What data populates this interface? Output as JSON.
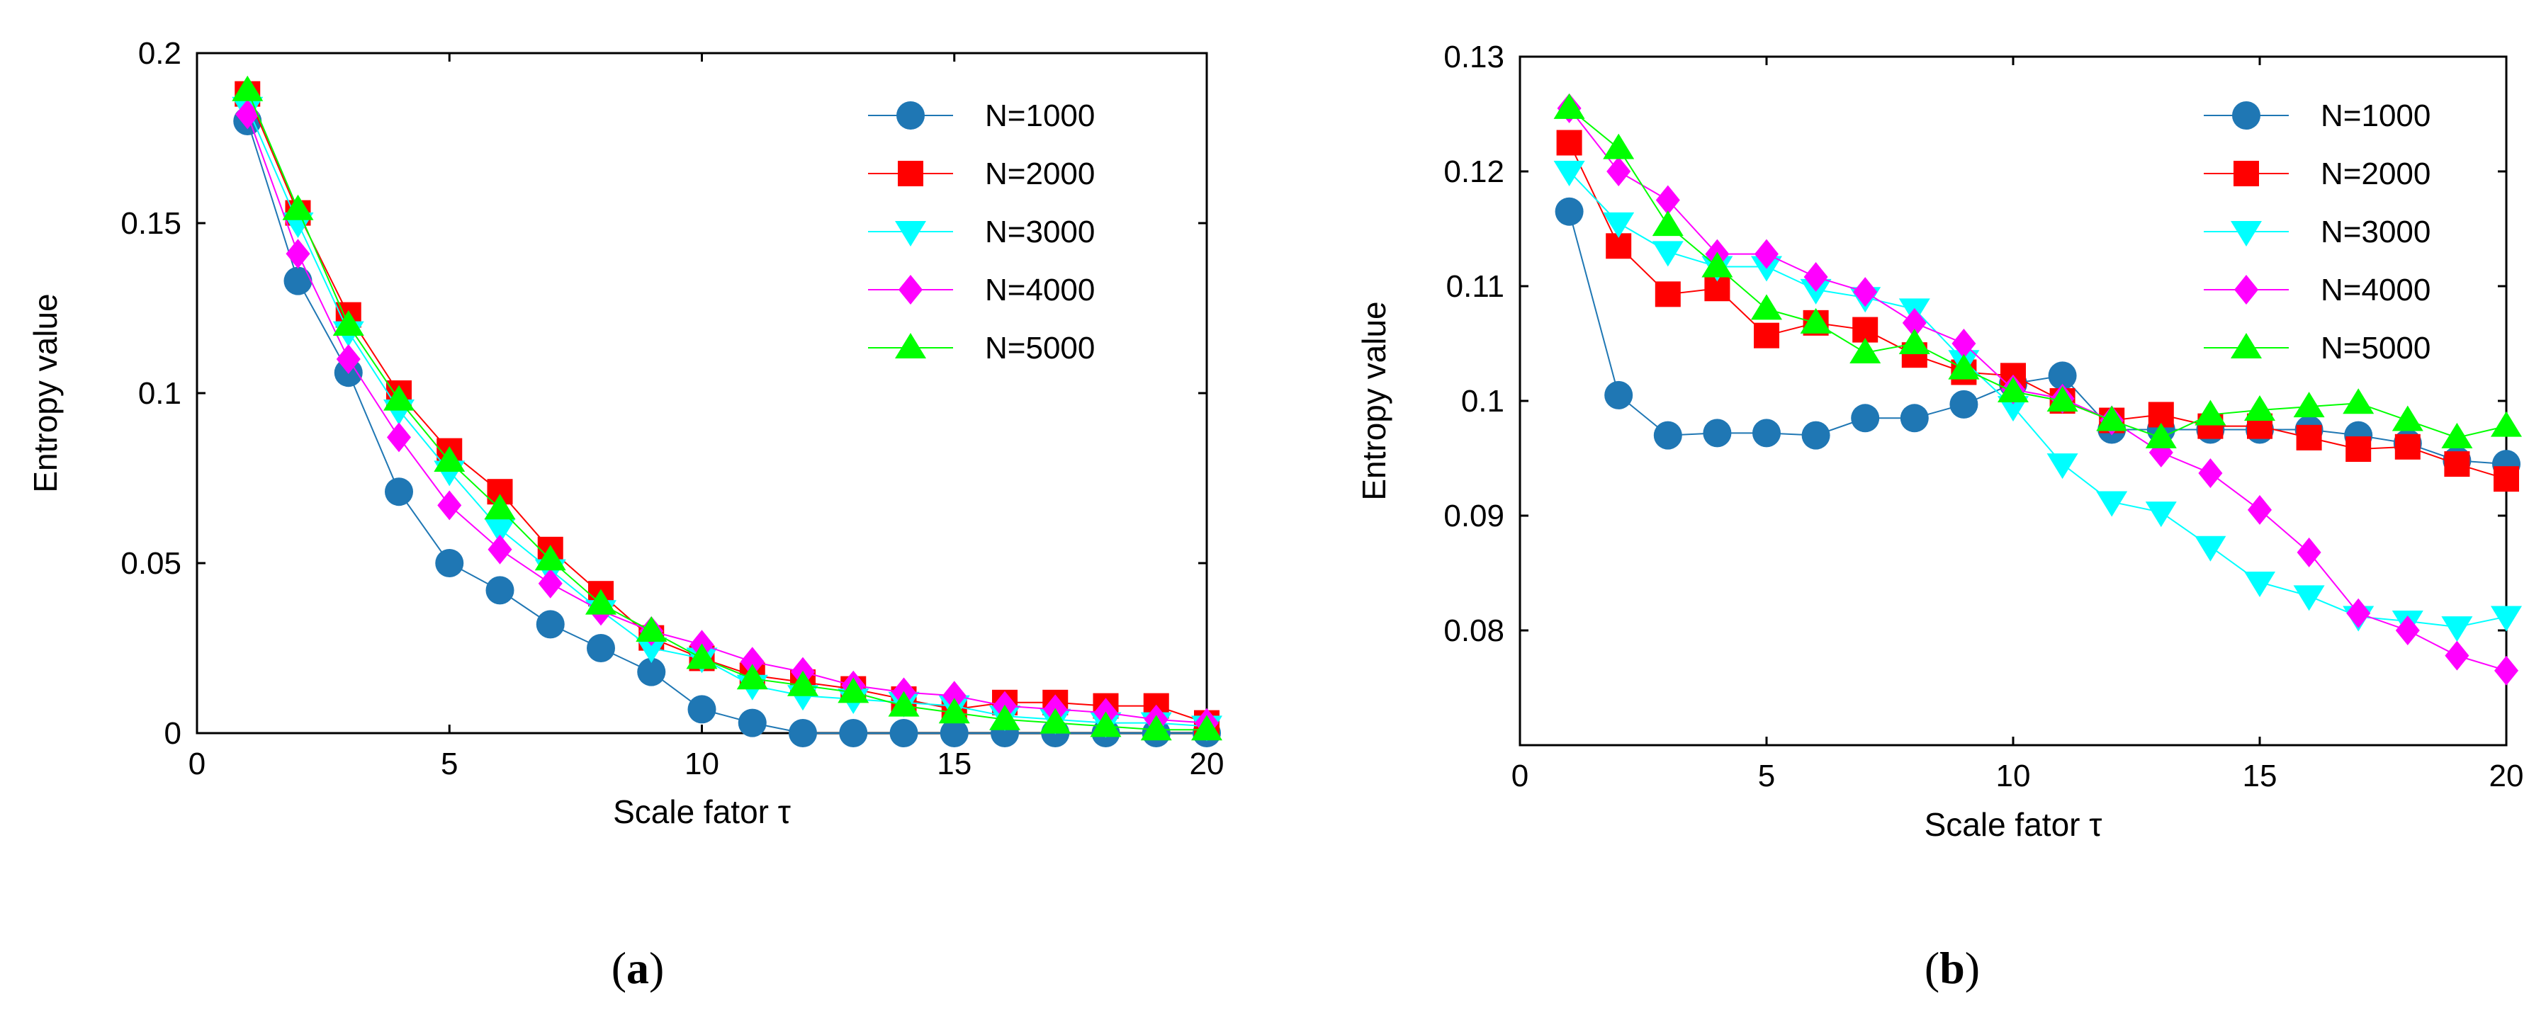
{
  "chart_data": [
    {
      "type": "line",
      "panel_label": "a",
      "xlabel": "Scale fator τ",
      "ylabel": "Entropy value",
      "xlim": [
        0,
        20
      ],
      "ylim": [
        0,
        0.2
      ],
      "xticks": [
        0,
        5,
        10,
        15,
        20
      ],
      "xtick_labels": [
        "0",
        "5",
        "10",
        "15",
        "20"
      ],
      "yticks": [
        0,
        0.05,
        0.1,
        0.15,
        0.2
      ],
      "ytick_labels": [
        "0",
        "0.05",
        "0.1",
        "0.15",
        "0.2"
      ],
      "grid": false,
      "legend_position": "top-right",
      "x": [
        1,
        2,
        3,
        4,
        5,
        6,
        7,
        8,
        9,
        10,
        11,
        12,
        13,
        14,
        15,
        16,
        17,
        18,
        19,
        20
      ],
      "series": [
        {
          "name": "N=1000",
          "color": "#1f77b4",
          "marker": "circle",
          "values": [
            0.18,
            0.133,
            0.106,
            0.071,
            0.05,
            0.042,
            0.032,
            0.025,
            0.018,
            0.007,
            0.003,
            0.0,
            0.0,
            0.0,
            0.0,
            0.0,
            0.0,
            0.0,
            0.0,
            0.0
          ]
        },
        {
          "name": "N=2000",
          "color": "#ff0000",
          "marker": "square",
          "values": [
            0.188,
            0.153,
            0.123,
            0.1,
            0.083,
            0.071,
            0.054,
            0.041,
            0.028,
            0.022,
            0.017,
            0.015,
            0.013,
            0.01,
            0.007,
            0.009,
            0.009,
            0.008,
            0.008,
            0.003
          ]
        },
        {
          "name": "N=3000",
          "color": "#00ffff",
          "marker": "triangle-down",
          "values": [
            0.184,
            0.15,
            0.118,
            0.095,
            0.077,
            0.06,
            0.048,
            0.036,
            0.025,
            0.022,
            0.014,
            0.011,
            0.01,
            0.009,
            0.008,
            0.005,
            0.004,
            0.003,
            0.003,
            0.002
          ]
        },
        {
          "name": "N=4000",
          "color": "#ff00ff",
          "marker": "diamond",
          "values": [
            0.182,
            0.141,
            0.11,
            0.087,
            0.067,
            0.054,
            0.044,
            0.036,
            0.03,
            0.026,
            0.021,
            0.018,
            0.014,
            0.012,
            0.011,
            0.008,
            0.007,
            0.006,
            0.004,
            0.003
          ]
        },
        {
          "name": "N=5000",
          "color": "#00ff00",
          "marker": "triangle-up",
          "values": [
            0.189,
            0.154,
            0.12,
            0.098,
            0.08,
            0.066,
            0.051,
            0.038,
            0.03,
            0.022,
            0.016,
            0.014,
            0.012,
            0.008,
            0.006,
            0.004,
            0.003,
            0.002,
            0.001,
            0.001
          ]
        }
      ]
    },
    {
      "type": "line",
      "panel_label": "b",
      "xlabel": "Scale fator τ",
      "ylabel": "Entropy value",
      "xlim": [
        0,
        20
      ],
      "ylim": [
        0.07,
        0.13
      ],
      "xticks": [
        0,
        5,
        10,
        15,
        20
      ],
      "xtick_labels": [
        "0",
        "5",
        "10",
        "15",
        "20"
      ],
      "yticks": [
        0.08,
        0.09,
        0.1,
        0.11,
        0.12,
        0.13
      ],
      "ytick_labels": [
        "0.08",
        "0.09",
        "0.1",
        "0.11",
        "0.12",
        "0.13"
      ],
      "grid": false,
      "legend_position": "top-right",
      "x": [
        1,
        2,
        3,
        4,
        5,
        6,
        7,
        8,
        9,
        10,
        11,
        12,
        13,
        14,
        15,
        16,
        17,
        18,
        19,
        20
      ],
      "series": [
        {
          "name": "N=1000",
          "color": "#1f77b4",
          "marker": "circle",
          "values": [
            0.1165,
            0.1005,
            0.097,
            0.0972,
            0.0972,
            0.097,
            0.0985,
            0.0985,
            0.0997,
            0.1015,
            0.1022,
            0.0975,
            0.0975,
            0.0975,
            0.0975,
            0.0975,
            0.097,
            0.0963,
            0.0948,
            0.0945
          ]
        },
        {
          "name": "N=2000",
          "color": "#ff0000",
          "marker": "square",
          "values": [
            0.1225,
            0.1135,
            0.1093,
            0.1098,
            0.1057,
            0.1068,
            0.1062,
            0.104,
            0.1025,
            0.1022,
            0.1,
            0.0983,
            0.0988,
            0.0978,
            0.0978,
            0.0968,
            0.0958,
            0.096,
            0.0945,
            0.0932
          ]
        },
        {
          "name": "N=3000",
          "color": "#00ffff",
          "marker": "triangle-down",
          "values": [
            0.12,
            0.1155,
            0.113,
            0.1117,
            0.1117,
            0.1097,
            0.109,
            0.108,
            0.1035,
            0.0995,
            0.0945,
            0.0912,
            0.0903,
            0.0873,
            0.0842,
            0.083,
            0.0812,
            0.0808,
            0.0803,
            0.0812
          ]
        },
        {
          "name": "N=4000",
          "color": "#ff00ff",
          "marker": "diamond",
          "values": [
            0.1255,
            0.12,
            0.1175,
            0.1128,
            0.1128,
            0.1108,
            0.1095,
            0.1068,
            0.105,
            0.101,
            0.1002,
            0.0983,
            0.0955,
            0.0937,
            0.0905,
            0.0868,
            0.0815,
            0.08,
            0.0778,
            0.0765
          ]
        },
        {
          "name": "N=5000",
          "color": "#00ff00",
          "marker": "triangle-up",
          "values": [
            0.1255,
            0.122,
            0.1153,
            0.1117,
            0.108,
            0.1068,
            0.1042,
            0.105,
            0.1028,
            0.1008,
            0.1,
            0.0983,
            0.0968,
            0.0988,
            0.0992,
            0.0995,
            0.0998,
            0.0983,
            0.0968,
            0.0978
          ]
        }
      ]
    }
  ]
}
